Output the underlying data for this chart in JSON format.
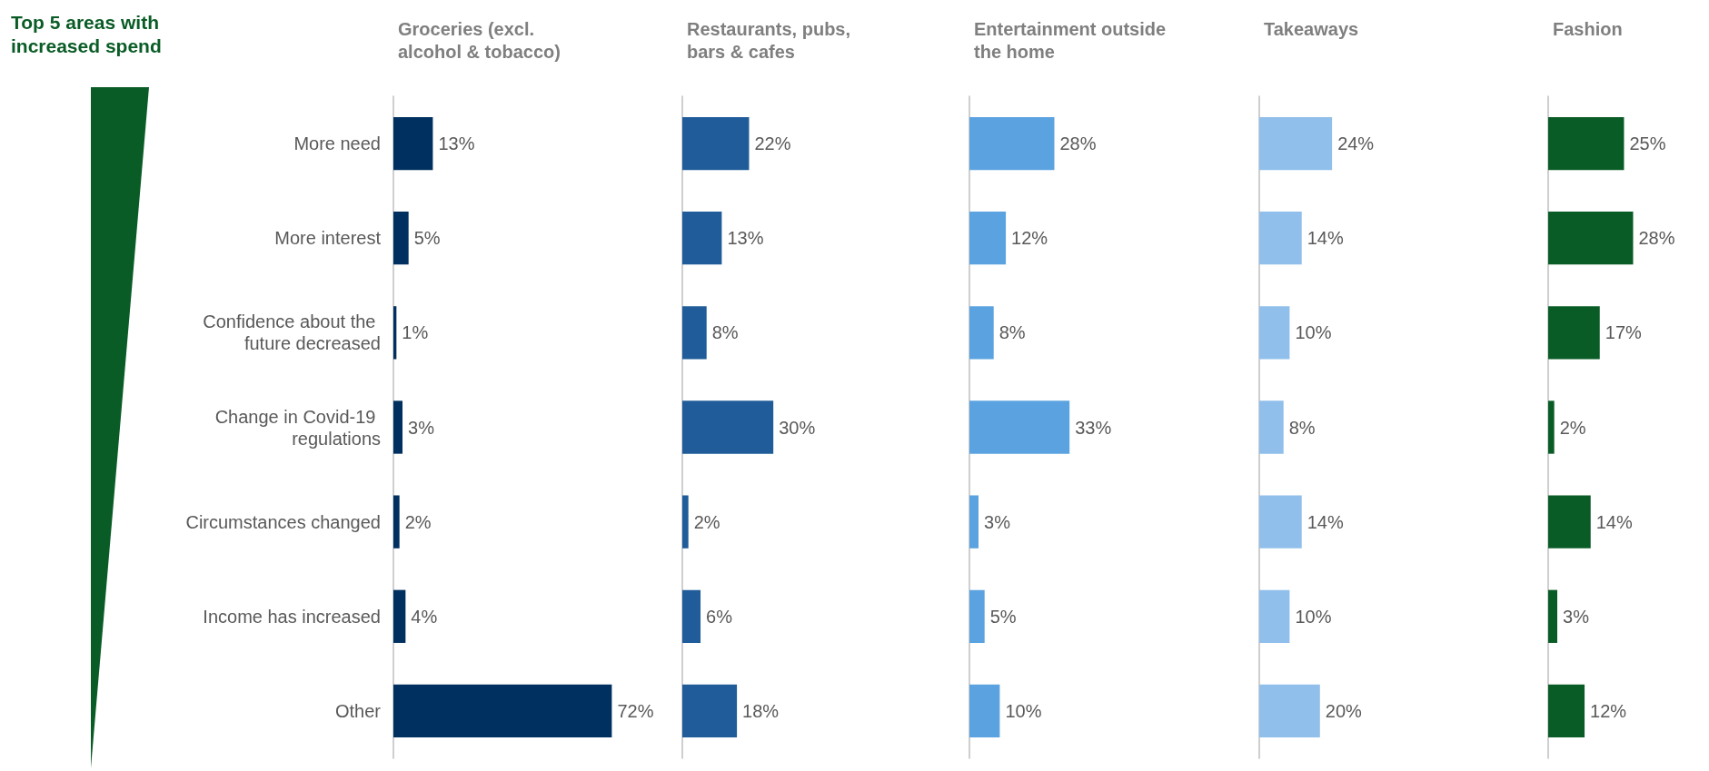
{
  "chart_data": [
    {
      "type": "bar",
      "orientation": "horizontal",
      "title": "Groceries (excl. alcohol & tobacco)",
      "annotations": [
        "Top 5 areas with increased spend"
      ],
      "categories": [
        "More need",
        "More interest",
        "Confidence about the future decreased",
        "Change in Covid-19 regulations",
        "Circumstances changed",
        "Income has increased",
        "Other"
      ],
      "values": [
        13,
        5,
        1,
        3,
        2,
        4,
        72
      ],
      "value_labels": [
        "13%",
        "5%",
        "1%",
        "3%",
        "2%",
        "4%",
        "72%"
      ],
      "color": "#00305f",
      "tick_labels": "y"
    },
    {
      "type": "bar",
      "orientation": "horizontal",
      "title": "Restaurants, pubs, bars & cafes",
      "categories": [
        "More need",
        "More interest",
        "Confidence about the future decreased",
        "Change in Covid-19 regulations",
        "Circumstances changed",
        "Income has increased",
        "Other"
      ],
      "values": [
        22,
        13,
        8,
        30,
        2,
        6,
        18
      ],
      "value_labels": [
        "22%",
        "13%",
        "8%",
        "30%",
        "2%",
        "6%",
        "18%"
      ],
      "color": "#1f5c99",
      "tick_labels": false
    },
    {
      "type": "bar",
      "orientation": "horizontal",
      "title": "Entertainment outside the home",
      "categories": [
        "More need",
        "More interest",
        "Confidence about the future decreased",
        "Change in Covid-19 regulations",
        "Circumstances changed",
        "Income has increased",
        "Other"
      ],
      "values": [
        28,
        12,
        8,
        33,
        3,
        5,
        10
      ],
      "value_labels": [
        "28%",
        "12%",
        "8%",
        "33%",
        "3%",
        "5%",
        "10%"
      ],
      "color": "#5ba3e0",
      "tick_labels": false
    },
    {
      "type": "bar",
      "orientation": "horizontal",
      "title": "Takeaways",
      "categories": [
        "More need",
        "More interest",
        "Confidence about the future decreased",
        "Change in Covid-19 regulations",
        "Circumstances changed",
        "Income has increased",
        "Other"
      ],
      "values": [
        24,
        14,
        10,
        8,
        14,
        10,
        20
      ],
      "value_labels": [
        "24%",
        "14%",
        "10%",
        "8%",
        "14%",
        "10%",
        "20%"
      ],
      "color": "#8fbfea",
      "tick_labels": false
    },
    {
      "type": "bar",
      "orientation": "horizontal",
      "title": "Fashion",
      "categories": [
        "More need",
        "More interest",
        "Confidence about the future decreased",
        "Change in Covid-19 regulations",
        "Circumstances changed",
        "Income has increased",
        "Other"
      ],
      "values": [
        25,
        28,
        17,
        2,
        14,
        3,
        12
      ],
      "value_labels": [
        "25%",
        "28%",
        "17%",
        "2%",
        "14%",
        "3%",
        "12%"
      ],
      "color": "#0a5c26",
      "tick_labels": false
    }
  ]
}
